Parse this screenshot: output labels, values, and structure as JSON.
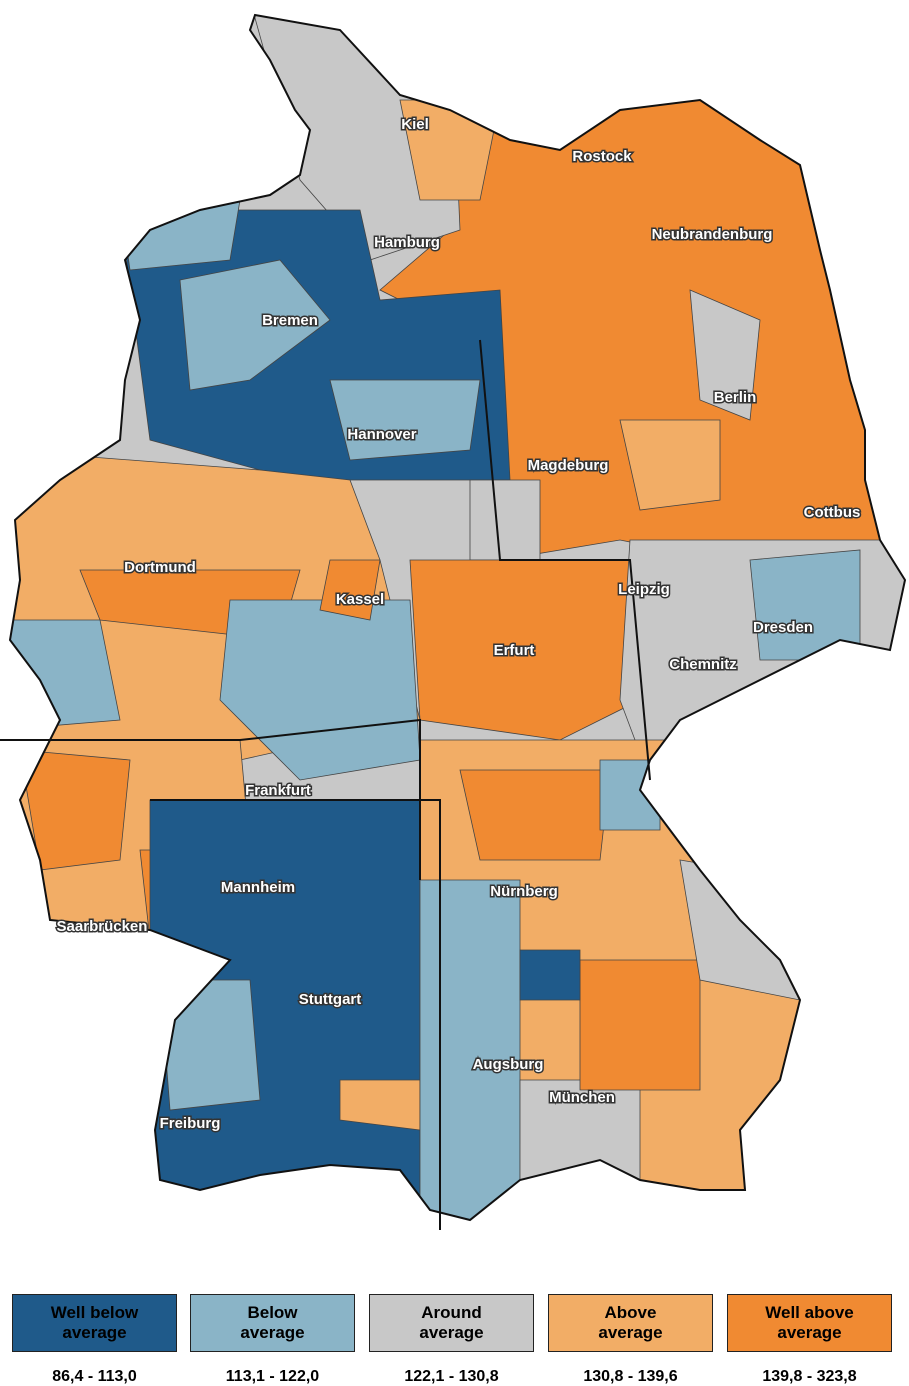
{
  "cities": [
    {
      "label": "Kiel"
    },
    {
      "label": "Rostock"
    },
    {
      "label": "Hamburg"
    },
    {
      "label": "Neubrandenburg"
    },
    {
      "label": "Bremen"
    },
    {
      "label": "Berlin"
    },
    {
      "label": "Hannover"
    },
    {
      "label": "Magdeburg"
    },
    {
      "label": "Cottbus"
    },
    {
      "label": "Dortmund"
    },
    {
      "label": "Kassel"
    },
    {
      "label": "Leipzig"
    },
    {
      "label": "Dresden"
    },
    {
      "label": "Erfurt"
    },
    {
      "label": "Chemnitz"
    },
    {
      "label": "Frankfurt"
    },
    {
      "label": "Nürnberg"
    },
    {
      "label": "Mannheim"
    },
    {
      "label": "Saarbrücken"
    },
    {
      "label": "Stuttgart"
    },
    {
      "label": "Augsburg"
    },
    {
      "label": "München"
    },
    {
      "label": "Freiburg"
    }
  ],
  "legend": [
    {
      "label": "Well below average",
      "range": "86,4 - 113,0",
      "color": "#1f5a8a"
    },
    {
      "label": "Below average",
      "range": "113,1 - 122,0",
      "color": "#8ab4c7"
    },
    {
      "label": "Around average",
      "range": "122,1 - 130,8",
      "color": "#c8c8c8"
    },
    {
      "label": "Above average",
      "range": "130,8 - 139,6",
      "color": "#f2ad66"
    },
    {
      "label": "Well above average",
      "range": "139,8 - 323,8",
      "color": "#f08a32"
    }
  ]
}
